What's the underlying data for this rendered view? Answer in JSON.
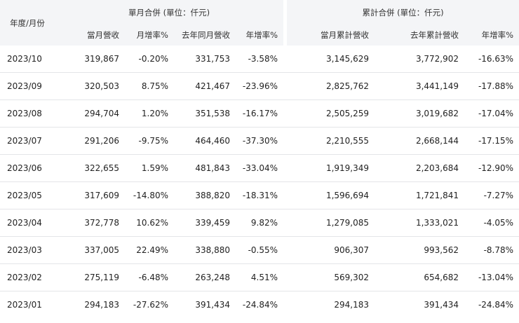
{
  "table": {
    "period_header": "年度/月份",
    "monthly_group_header": "單月合併 (單位：仟元)",
    "cumulative_group_header": "累計合併 (單位：仟元)",
    "monthly_headers": [
      "當月營收",
      "月增率%",
      "去年同月營收",
      "年增率%"
    ],
    "cumulative_headers": [
      "當月累計營收",
      "去年累計營收",
      "年增率%"
    ],
    "rows": [
      {
        "period": "2023/10",
        "revenue": "319,867",
        "mom": "-0.20%",
        "last_year": "331,753",
        "yoy": "-3.58%",
        "cum": "3,145,629",
        "cum_last_year": "3,772,902",
        "cum_yoy": "-16.63%"
      },
      {
        "period": "2023/09",
        "revenue": "320,503",
        "mom": "8.75%",
        "last_year": "421,467",
        "yoy": "-23.96%",
        "cum": "2,825,762",
        "cum_last_year": "3,441,149",
        "cum_yoy": "-17.88%"
      },
      {
        "period": "2023/08",
        "revenue": "294,704",
        "mom": "1.20%",
        "last_year": "351,538",
        "yoy": "-16.17%",
        "cum": "2,505,259",
        "cum_last_year": "3,019,682",
        "cum_yoy": "-17.04%"
      },
      {
        "period": "2023/07",
        "revenue": "291,206",
        "mom": "-9.75%",
        "last_year": "464,460",
        "yoy": "-37.30%",
        "cum": "2,210,555",
        "cum_last_year": "2,668,144",
        "cum_yoy": "-17.15%"
      },
      {
        "period": "2023/06",
        "revenue": "322,655",
        "mom": "1.59%",
        "last_year": "481,843",
        "yoy": "-33.04%",
        "cum": "1,919,349",
        "cum_last_year": "2,203,684",
        "cum_yoy": "-12.90%"
      },
      {
        "period": "2023/05",
        "revenue": "317,609",
        "mom": "-14.80%",
        "last_year": "388,820",
        "yoy": "-18.31%",
        "cum": "1,596,694",
        "cum_last_year": "1,721,841",
        "cum_yoy": "-7.27%"
      },
      {
        "period": "2023/04",
        "revenue": "372,778",
        "mom": "10.62%",
        "last_year": "339,459",
        "yoy": "9.82%",
        "cum": "1,279,085",
        "cum_last_year": "1,333,021",
        "cum_yoy": "-4.05%"
      },
      {
        "period": "2023/03",
        "revenue": "337,005",
        "mom": "22.49%",
        "last_year": "338,880",
        "yoy": "-0.55%",
        "cum": "906,307",
        "cum_last_year": "993,562",
        "cum_yoy": "-8.78%"
      },
      {
        "period": "2023/02",
        "revenue": "275,119",
        "mom": "-6.48%",
        "last_year": "263,248",
        "yoy": "4.51%",
        "cum": "569,302",
        "cum_last_year": "654,682",
        "cum_yoy": "-13.04%"
      },
      {
        "period": "2023/01",
        "revenue": "294,183",
        "mom": "-27.62%",
        "last_year": "391,434",
        "yoy": "-24.84%",
        "cum": "294,183",
        "cum_last_year": "391,434",
        "cum_yoy": "-24.84%"
      }
    ]
  }
}
